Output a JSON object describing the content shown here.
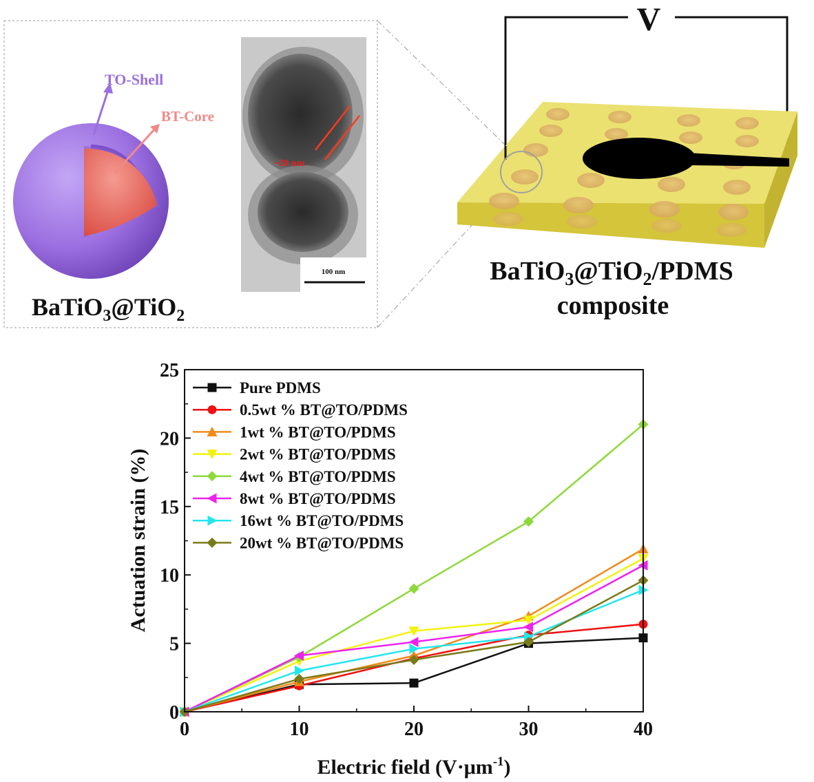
{
  "top": {
    "particle_label_main": "BaTiO",
    "particle_label_sub1": "3",
    "particle_label_mid": "@TiO",
    "particle_label_sub2": "2",
    "shell_label": "TO-Shell",
    "core_label": "BT-Core",
    "tem_thickness_label": "~20 nm",
    "tem_scalebar_label": "100 nm",
    "voltage_label": "V",
    "composite_label_l1_a": "BaTiO",
    "composite_label_l1_s1": "3",
    "composite_label_l1_b": "@TiO",
    "composite_label_l1_s2": "2",
    "composite_label_l1_c": "/PDMS",
    "composite_label_l2": "composite",
    "colors": {
      "shell": "#9b6fe0",
      "core": "#e8605f",
      "film": "#e6d84a",
      "electrode": "#000000"
    }
  },
  "chart_data": {
    "type": "line",
    "title": "",
    "xlabel_main": "Electric field (V·μm",
    "xlabel_sup": "-1",
    "xlabel_close": ")",
    "ylabel": "Actuation strain (%)",
    "x": [
      0,
      10,
      20,
      30,
      40
    ],
    "xlim": [
      0,
      40
    ],
    "ylim": [
      0,
      25
    ],
    "xticks": [
      "0",
      "10",
      "20",
      "30",
      "40"
    ],
    "yticks": [
      "0",
      "5",
      "10",
      "15",
      "20",
      "25"
    ],
    "grid": false,
    "legend_position": "top-left",
    "series": [
      {
        "name": "Pure PDMS",
        "color": "#111111",
        "marker": "square",
        "values": [
          0,
          2.0,
          2.1,
          5.0,
          5.4
        ]
      },
      {
        "name": "0.5wt % BT@TO/PDMS",
        "color": "#ee1111",
        "marker": "circle",
        "values": [
          0,
          1.9,
          3.9,
          5.6,
          6.4
        ]
      },
      {
        "name": "1wt % BT@TO/PDMS",
        "color": "#f08a18",
        "marker": "triangle-up",
        "values": [
          0,
          2.2,
          4.1,
          7.0,
          11.9
        ]
      },
      {
        "name": "2wt % BT@TO/PDMS",
        "color": "#f2f20c",
        "marker": "triangle-down",
        "values": [
          0,
          3.7,
          5.9,
          6.7,
          11.2
        ]
      },
      {
        "name": "4wt % BT@TO/PDMS",
        "color": "#8ed93a",
        "marker": "diamond",
        "values": [
          0,
          4.0,
          9.0,
          13.9,
          21.0
        ]
      },
      {
        "name": "8wt % BT@TO/PDMS",
        "color": "#ee22ee",
        "marker": "triangle-left",
        "values": [
          0,
          4.1,
          5.1,
          6.2,
          10.7
        ]
      },
      {
        "name": "16wt % BT@TO/PDMS",
        "color": "#22e6ee",
        "marker": "triangle-right",
        "values": [
          0,
          3.0,
          4.6,
          5.5,
          8.9
        ]
      },
      {
        "name": "20wt % BT@TO/PDMS",
        "color": "#7a7a18",
        "marker": "diamond",
        "values": [
          0,
          2.4,
          3.8,
          5.1,
          9.6
        ]
      }
    ]
  }
}
